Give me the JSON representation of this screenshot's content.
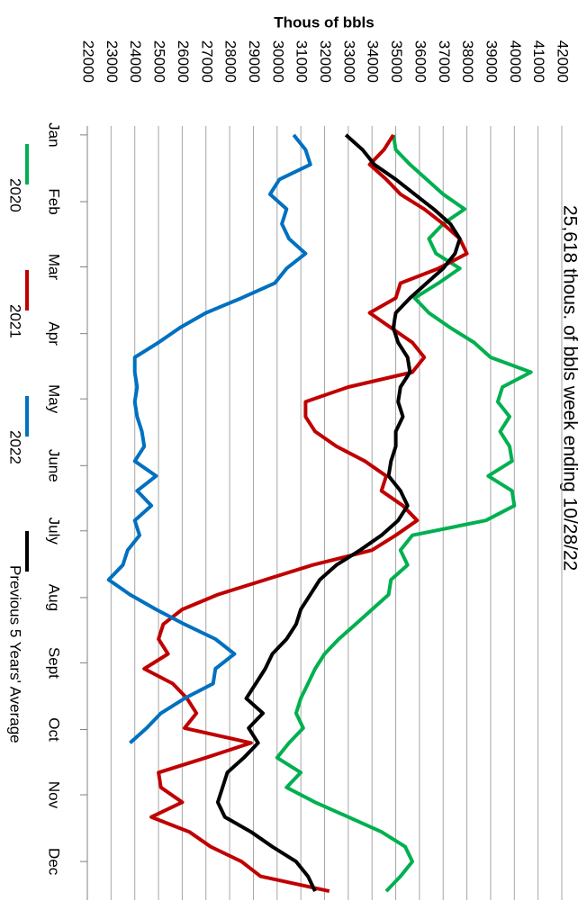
{
  "chart_data": {
    "type": "line",
    "title": "25,618 thous. of bbls week ending 10/28/22",
    "y_label": "Thous of bbls",
    "x": [
      1,
      2,
      3,
      4,
      5,
      6,
      7,
      8,
      9,
      10,
      11,
      12,
      13,
      14,
      15,
      16,
      17,
      18,
      19,
      20,
      21,
      22,
      23,
      24,
      25,
      26,
      27,
      28,
      29,
      30,
      31,
      32,
      33,
      34,
      35,
      36,
      37,
      38,
      39,
      40,
      41,
      42,
      43,
      44,
      45,
      46,
      47,
      48,
      49,
      50,
      51,
      52
    ],
    "xlim": [
      0.4,
      52.6
    ],
    "xticks": [
      {
        "value": 1,
        "label": "Jan"
      },
      {
        "value": 5.5,
        "label": "Feb"
      },
      {
        "value": 9.9,
        "label": "Mar"
      },
      {
        "value": 14.4,
        "label": "Apr"
      },
      {
        "value": 18.8,
        "label": "May"
      },
      {
        "value": 23.3,
        "label": "June"
      },
      {
        "value": 27.7,
        "label": "July"
      },
      {
        "value": 32.2,
        "label": "Aug"
      },
      {
        "value": 36.6,
        "label": "Sept"
      },
      {
        "value": 41.1,
        "label": "Oct"
      },
      {
        "value": 45.5,
        "label": "Nov"
      },
      {
        "value": 50,
        "label": "Dec"
      }
    ],
    "ylim": [
      22000,
      42000
    ],
    "yticks": [
      22000,
      23000,
      24000,
      25000,
      26000,
      27000,
      28000,
      29000,
      30000,
      31000,
      32000,
      33000,
      34000,
      35000,
      36000,
      37000,
      38000,
      39000,
      40000,
      41000,
      42000
    ],
    "grid": true,
    "legend": "bottom",
    "series": [
      {
        "name": "2020",
        "color": "#00b050",
        "values": [
          34900,
          35000,
          35600,
          36300,
          37000,
          37900,
          37000,
          36400,
          36700,
          37700,
          36800,
          35800,
          36400,
          37300,
          38300,
          39000,
          40700,
          39500,
          39300,
          39800,
          39400,
          39800,
          39900,
          38900,
          39900,
          40000,
          38800,
          35700,
          35200,
          35500,
          34800,
          34700,
          34000,
          33300,
          32600,
          32000,
          31600,
          31300,
          31000,
          30800,
          31100,
          30500,
          30000,
          31000,
          30400,
          31600,
          33000,
          34400,
          35400,
          35700,
          35200,
          34600
        ]
      },
      {
        "name": "2021",
        "color": "#c00000",
        "values": [
          34900,
          34500,
          33900,
          34600,
          35200,
          36200,
          37000,
          37700,
          38000,
          36800,
          35200,
          35000,
          33900,
          34800,
          35700,
          36200,
          35700,
          33000,
          31200,
          31200,
          31600,
          32500,
          33700,
          34600,
          34400,
          35300,
          35900,
          35000,
          34000,
          31500,
          29500,
          27500,
          26000,
          25200,
          25000,
          25400,
          24400,
          25600,
          26200,
          26600,
          26100,
          28900,
          27000,
          25000,
          25100,
          26000,
          24700,
          26300,
          27200,
          28500,
          29300,
          32200
        ]
      },
      {
        "name": "2022",
        "color": "#0070c0",
        "values": [
          30700,
          31200,
          31400,
          30100,
          29700,
          30400,
          30200,
          30500,
          31200,
          30400,
          29900,
          28500,
          27000,
          25900,
          25000,
          24000,
          24000,
          24100,
          24000,
          24100,
          24300,
          24400,
          24000,
          24900,
          24100,
          24700,
          24000,
          24200,
          23700,
          23500,
          22900,
          23800,
          24900,
          26100,
          27400,
          28200,
          27400,
          27300,
          26100,
          25100,
          24500,
          23800,
          null,
          null,
          null,
          null,
          null,
          null,
          null,
          null,
          null,
          null
        ]
      },
      {
        "name": "Previous 5 Years' Average",
        "color": "#000000",
        "values": [
          32900,
          33600,
          34100,
          35000,
          35800,
          36600,
          37300,
          37700,
          37500,
          37000,
          36300,
          35600,
          35000,
          34900,
          35100,
          35500,
          35600,
          35200,
          35100,
          35300,
          35000,
          35000,
          34800,
          34700,
          35200,
          35500,
          35100,
          34400,
          33500,
          32500,
          31800,
          31400,
          31000,
          30800,
          30400,
          29800,
          29500,
          29100,
          28700,
          29400,
          28800,
          29200,
          28600,
          27900,
          27700,
          27500,
          27800,
          28900,
          29800,
          30800,
          31300,
          31600
        ]
      }
    ]
  }
}
